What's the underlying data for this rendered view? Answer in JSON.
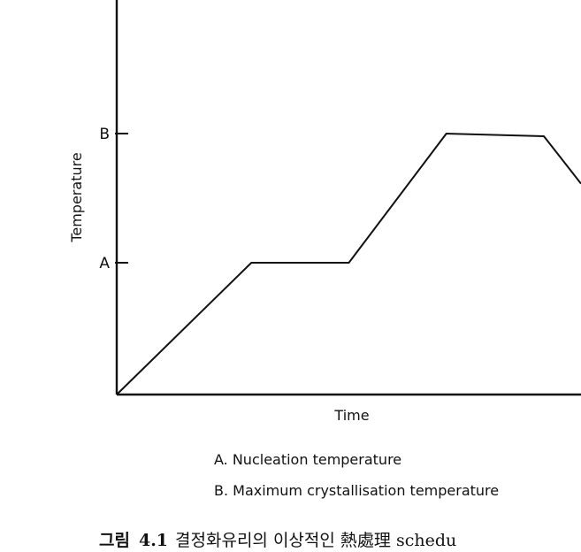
{
  "chart_data": {
    "type": "line",
    "title": "",
    "xlabel": "Time",
    "ylabel": "Temperature",
    "y_ticks": [
      {
        "label": "A",
        "name": "Nucleation temperature",
        "level": 0.5
      },
      {
        "label": "B",
        "name": "Maximum crystallisation temperature",
        "level": 0.99
      }
    ],
    "series": [
      {
        "points": [
          {
            "t": 0.0,
            "level": 0.0
          },
          {
            "t": 0.29,
            "level": 0.5
          },
          {
            "t": 0.5,
            "level": 0.5
          },
          {
            "t": 0.71,
            "level": 0.99
          },
          {
            "t": 0.92,
            "level": 0.98
          },
          {
            "t": 1.0,
            "level": 0.8
          }
        ]
      }
    ],
    "legend": [
      "A. Nucleation temperature",
      "B. Maximum crystallisation temperature"
    ],
    "grid": false
  },
  "caption": {
    "label": "그림",
    "number": "4.1",
    "text": "결정화유리의 이상적인 熱處理 schedu"
  }
}
